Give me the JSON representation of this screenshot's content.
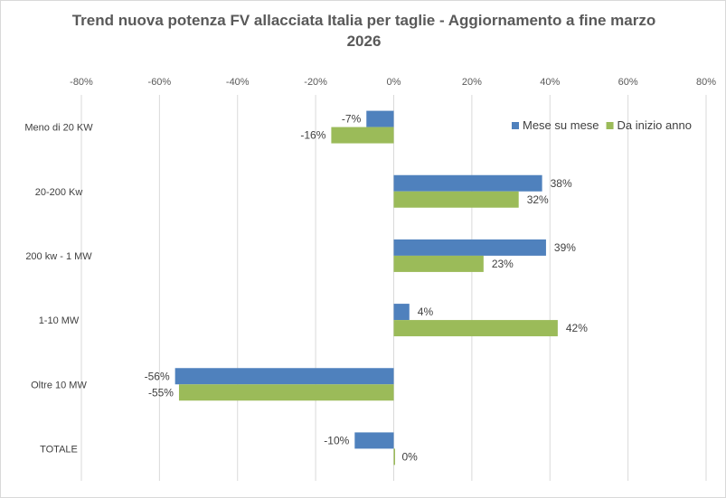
{
  "chart_data": {
    "type": "bar",
    "orientation": "horizontal",
    "title_line1": "Trend nuova potenza FV allacciata Italia per taglie - Aggiornamento a fine marzo",
    "title_line2": "2026",
    "categories": [
      "Meno di 20 KW",
      "20-200 Kw",
      "200 kw - 1 MW",
      "1-10 MW",
      "Oltre 10 MW",
      "TOTALE"
    ],
    "series": [
      {
        "name": "Mese su mese",
        "color": "#4f81bd",
        "values": [
          -7,
          38,
          39,
          4,
          -56,
          -10
        ],
        "labels": [
          "-7%",
          "38%",
          "39%",
          "4%",
          "-56%",
          "-10%"
        ]
      },
      {
        "name": "Da inizio anno",
        "color": "#9bbb59",
        "values": [
          -16,
          32,
          23,
          42,
          -55,
          0
        ],
        "labels": [
          "-16%",
          "32%",
          "23%",
          "42%",
          "-55%",
          "0%"
        ]
      }
    ],
    "xlim": [
      -80,
      80
    ],
    "xticks": [
      -80,
      -60,
      -40,
      -20,
      0,
      20,
      40,
      60,
      80
    ],
    "xtick_labels": [
      "-80%",
      "-60%",
      "-40%",
      "-20%",
      "0%",
      "20%",
      "40%",
      "60%",
      "80%"
    ],
    "xaxis_position": "top",
    "grid": true,
    "legend_position": "top-right"
  }
}
